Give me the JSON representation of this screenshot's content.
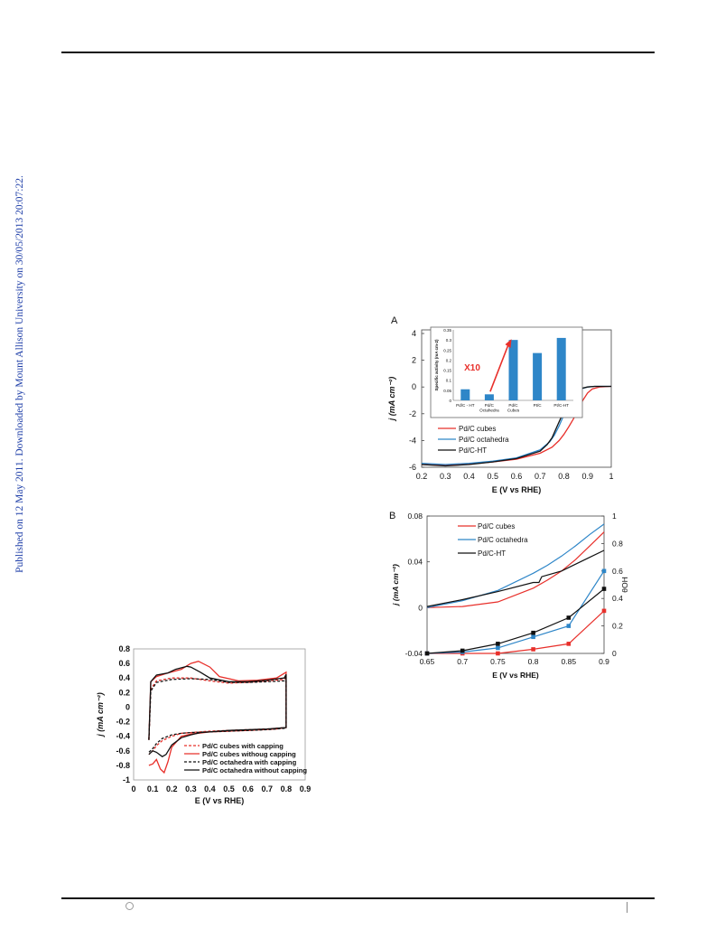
{
  "page": {
    "sidebar_text": "Published on 12 May 2011. Downloaded by Mount Allison University on 30/05/2013 20:07:22."
  },
  "chart_data": [
    {
      "id": "cv",
      "type": "line",
      "xlabel": "E (V vs RHE)",
      "ylabel": "j (mA cm⁻²)",
      "xlim": [
        0,
        0.9
      ],
      "ylim": [
        -1,
        0.8
      ],
      "xticks": [
        "0",
        "0.1",
        "0.2",
        "0.3",
        "0.4",
        "0.5",
        "0.6",
        "0.7",
        "0.8",
        "0.9"
      ],
      "yticks": [
        "0.8",
        "0.6",
        "0.4",
        "0.2",
        "0",
        "-0.2",
        "-0.4",
        "-0.6",
        "-0.8",
        "-1"
      ],
      "legend": [
        {
          "label": "Pd/C cubes with capping",
          "color": "#e8302b",
          "dash": true
        },
        {
          "label": "Pd/C cubes withoug capping",
          "color": "#e8302b",
          "dash": false
        },
        {
          "label": "Pd/C octahedra with capping",
          "color": "#111111",
          "dash": true
        },
        {
          "label": "Pd/C octahedra without capping",
          "color": "#111111",
          "dash": false
        }
      ],
      "series": [
        {
          "name": "Pd/C cubes with capping",
          "x": [
            0.08,
            0.09,
            0.12,
            0.2,
            0.3,
            0.4,
            0.5,
            0.6,
            0.7,
            0.79,
            0.8,
            0.8,
            0.7,
            0.6,
            0.5,
            0.4,
            0.3,
            0.25,
            0.2,
            0.15,
            0.12,
            0.1,
            0.08
          ],
          "y": [
            -0.45,
            0.25,
            0.36,
            0.4,
            0.4,
            0.36,
            0.33,
            0.34,
            0.36,
            0.38,
            0.43,
            -0.28,
            -0.3,
            -0.31,
            -0.32,
            -0.33,
            -0.35,
            -0.36,
            -0.4,
            -0.46,
            -0.53,
            -0.6,
            -0.65
          ]
        },
        {
          "name": "Pd/C cubes withoug capping",
          "x": [
            0.08,
            0.09,
            0.12,
            0.18,
            0.25,
            0.3,
            0.34,
            0.4,
            0.45,
            0.55,
            0.65,
            0.75,
            0.8,
            0.8,
            0.75,
            0.6,
            0.4,
            0.3,
            0.25,
            0.2,
            0.18,
            0.16,
            0.14,
            0.12,
            0.1,
            0.08
          ],
          "y": [
            -0.45,
            0.35,
            0.42,
            0.47,
            0.52,
            0.6,
            0.63,
            0.55,
            0.42,
            0.36,
            0.37,
            0.4,
            0.48,
            -0.28,
            -0.3,
            -0.32,
            -0.34,
            -0.37,
            -0.4,
            -0.55,
            -0.75,
            -0.9,
            -0.85,
            -0.72,
            -0.78,
            -0.8
          ]
        },
        {
          "name": "Pd/C octahedra with capping",
          "x": [
            0.08,
            0.09,
            0.12,
            0.2,
            0.3,
            0.4,
            0.5,
            0.6,
            0.7,
            0.79,
            0.8,
            0.8,
            0.7,
            0.6,
            0.5,
            0.4,
            0.3,
            0.25,
            0.2,
            0.15,
            0.12,
            0.1,
            0.08
          ],
          "y": [
            -0.45,
            0.22,
            0.34,
            0.38,
            0.39,
            0.38,
            0.34,
            0.34,
            0.35,
            0.36,
            0.41,
            -0.29,
            -0.31,
            -0.32,
            -0.33,
            -0.34,
            -0.35,
            -0.36,
            -0.38,
            -0.43,
            -0.5,
            -0.57,
            -0.62
          ]
        },
        {
          "name": "Pd/C octahedra without capping",
          "x": [
            0.08,
            0.09,
            0.12,
            0.18,
            0.22,
            0.28,
            0.3,
            0.35,
            0.4,
            0.5,
            0.6,
            0.7,
            0.79,
            0.8,
            0.8,
            0.7,
            0.5,
            0.35,
            0.3,
            0.25,
            0.2,
            0.17,
            0.15,
            0.12,
            0.1,
            0.08
          ],
          "y": [
            -0.45,
            0.35,
            0.44,
            0.47,
            0.52,
            0.56,
            0.55,
            0.48,
            0.4,
            0.35,
            0.35,
            0.37,
            0.4,
            0.45,
            -0.28,
            -0.3,
            -0.32,
            -0.35,
            -0.38,
            -0.42,
            -0.52,
            -0.65,
            -0.68,
            -0.62,
            -0.6,
            -0.65
          ]
        }
      ]
    },
    {
      "id": "orr",
      "type": "line",
      "panel_label": "A",
      "xlabel": "E (V vs RHE)",
      "ylabel": "j (mA cm⁻²)",
      "xlim": [
        0.2,
        1
      ],
      "ylim": [
        -6,
        4
      ],
      "xticks": [
        "0.2",
        "0.3",
        "0.4",
        "0.5",
        "0.6",
        "0.7",
        "0.8",
        "0.9",
        "1"
      ],
      "yticks": [
        "4",
        "2",
        "0",
        "-2",
        "-4",
        "-6"
      ],
      "legend": [
        {
          "label": "Pd/C cubes",
          "color": "#e8302b"
        },
        {
          "label": "Pd/C octahedra",
          "color": "#2e86c8"
        },
        {
          "label": "Pd/C-HT",
          "color": "#111111"
        }
      ],
      "series": [
        {
          "name": "Pd/C cubes",
          "x": [
            0.2,
            0.3,
            0.4,
            0.5,
            0.6,
            0.7,
            0.75,
            0.78,
            0.8,
            0.82,
            0.84,
            0.86,
            0.88,
            0.9,
            0.92,
            0.95,
            1.0
          ],
          "y": [
            -5.8,
            -5.85,
            -5.75,
            -5.6,
            -5.4,
            -4.95,
            -4.5,
            -4.0,
            -3.55,
            -3.0,
            -2.4,
            -1.7,
            -1.0,
            -0.45,
            -0.15,
            0.0,
            0.05
          ]
        },
        {
          "name": "Pd/C octahedra",
          "x": [
            0.2,
            0.3,
            0.4,
            0.5,
            0.6,
            0.7,
            0.74,
            0.76,
            0.78,
            0.8,
            0.82,
            0.84,
            0.86,
            0.88,
            0.9,
            0.93,
            1.0
          ],
          "y": [
            -5.7,
            -5.8,
            -5.7,
            -5.55,
            -5.3,
            -4.7,
            -4.1,
            -3.6,
            -2.9,
            -2.1,
            -1.3,
            -0.7,
            -0.3,
            -0.1,
            0.0,
            0.05,
            0.05
          ]
        },
        {
          "name": "Pd/C-HT",
          "x": [
            0.2,
            0.3,
            0.4,
            0.5,
            0.6,
            0.7,
            0.73,
            0.75,
            0.77,
            0.79,
            0.81,
            0.83,
            0.85,
            0.87,
            0.9,
            0.93,
            1.0
          ],
          "y": [
            -5.8,
            -5.9,
            -5.8,
            -5.6,
            -5.35,
            -4.8,
            -4.3,
            -3.8,
            -3.0,
            -2.2,
            -1.4,
            -0.8,
            -0.35,
            -0.12,
            0.0,
            0.05,
            0.05
          ]
        }
      ]
    },
    {
      "id": "inset",
      "type": "bar",
      "ylabel": "Specific activity (mA cm-2)",
      "ylim": [
        0,
        0.35
      ],
      "yticks": [
        "0.35",
        "0.3",
        "0.25",
        "0.2",
        "0.15",
        "0.1",
        "0.05",
        "0"
      ],
      "categories": [
        "Pd/C - HT",
        "Pd/C\nOctahedra",
        "Pd/C\nCubes",
        "Pt/C",
        "Pt/C-HT"
      ],
      "values": [
        0.055,
        0.03,
        0.3,
        0.235,
        0.31
      ],
      "color": "#2e86c8",
      "annotation": "X10"
    },
    {
      "id": "coverage",
      "type": "line",
      "panel_label": "B",
      "xlabel": "E (V vs RHE)",
      "ylabel": "j (mA cm⁻²)",
      "y2label": "θOH",
      "xlim": [
        0.65,
        0.9
      ],
      "ylim": [
        -0.04,
        0.08
      ],
      "y2lim": [
        0,
        1
      ],
      "xticks": [
        "0.65",
        "0.7",
        "0.75",
        "0.8",
        "0.85",
        "0.9"
      ],
      "yticks": [
        "0.08",
        "0.04",
        "0",
        "-0.04"
      ],
      "y2ticks": [
        "1",
        "0.8",
        "0.6",
        "0.4",
        "0.2",
        "0"
      ],
      "legend": [
        {
          "label": "Pd/C cubes",
          "color": "#e8302b"
        },
        {
          "label": "Pd/C octahedra",
          "color": "#2e86c8"
        },
        {
          "label": "Pd/C-HT",
          "color": "#111111"
        }
      ],
      "series": [
        {
          "name": "Pd/C cubes",
          "axis": "y1",
          "x": [
            0.65,
            0.7,
            0.75,
            0.8,
            0.82,
            0.84,
            0.86,
            0.88,
            0.9
          ],
          "y": [
            0.0,
            0.001,
            0.005,
            0.017,
            0.024,
            0.032,
            0.042,
            0.054,
            0.066
          ]
        },
        {
          "name": "Pd/C octahedra",
          "axis": "y1",
          "x": [
            0.65,
            0.7,
            0.75,
            0.8,
            0.82,
            0.84,
            0.86,
            0.88,
            0.9
          ],
          "y": [
            0.0,
            0.006,
            0.015,
            0.03,
            0.037,
            0.045,
            0.054,
            0.064,
            0.073
          ]
        },
        {
          "name": "Pd/C-HT",
          "axis": "y1",
          "x": [
            0.65,
            0.7,
            0.75,
            0.8,
            0.808,
            0.812,
            0.84,
            0.86,
            0.88,
            0.9
          ],
          "y": [
            0.001,
            0.007,
            0.014,
            0.022,
            0.022,
            0.027,
            0.032,
            0.038,
            0.044,
            0.05
          ]
        },
        {
          "name": "Pd/C cubes θOH",
          "axis": "y2",
          "markers": true,
          "x": [
            0.65,
            0.7,
            0.75,
            0.8,
            0.85,
            0.9
          ],
          "y": [
            0.0,
            0.0,
            0.0,
            0.03,
            0.07,
            0.31
          ]
        },
        {
          "name": "Pd/C octahedra θOH",
          "axis": "y2",
          "markers": true,
          "x": [
            0.65,
            0.7,
            0.75,
            0.8,
            0.85,
            0.9
          ],
          "y": [
            0.0,
            0.01,
            0.04,
            0.12,
            0.2,
            0.6
          ]
        },
        {
          "name": "Pd/C-HT θOH",
          "axis": "y2",
          "markers": true,
          "x": [
            0.65,
            0.7,
            0.75,
            0.8,
            0.85,
            0.9
          ],
          "y": [
            0.0,
            0.02,
            0.07,
            0.15,
            0.26,
            0.47
          ]
        }
      ]
    }
  ]
}
